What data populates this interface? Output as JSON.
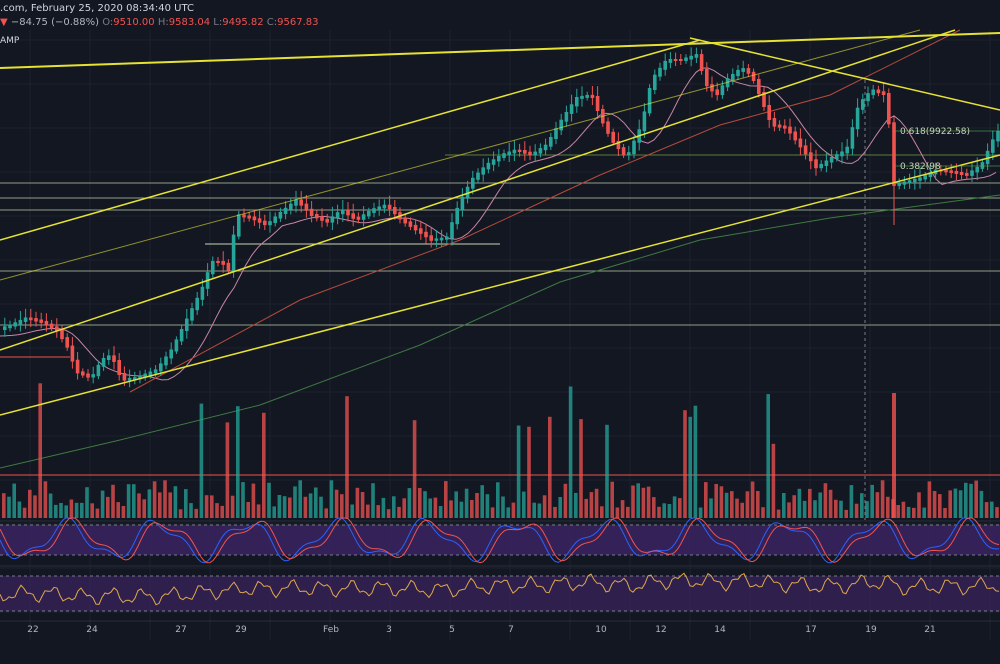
{
  "header": {
    "source_title": ".com, February 25, 2020 08:34:40 UTC",
    "change_arrow": "▼",
    "change": "−84.75 (−0.88%)",
    "open_label": "O:",
    "open_value": "9510.00",
    "high_label": "H:",
    "high_value": "9583.04",
    "low_label": "L:",
    "low_value": "9495.82",
    "close_label": "C:",
    "close_value": "9567.83",
    "indicator_label": "AMP"
  },
  "fib_labels": {
    "f618": "0.618(9922.58)",
    "f382": "0.382(98"
  },
  "x_axis": {
    "ticks": [
      "22",
      "24",
      "27",
      "29",
      "Feb",
      "3",
      "5",
      "7",
      "10",
      "12",
      "14",
      "17",
      "19",
      "21"
    ]
  },
  "colors": {
    "background": "#131722",
    "bull": "#26a69a",
    "bear": "#ef5350",
    "trendline": "#e5e234",
    "support": "#c8d6b0",
    "ma_fast": "#c986a6",
    "ma_mid": "#b74c3b",
    "ma_slow": "#3e7a42",
    "stoch_k": "#2962ff",
    "stoch_d": "#ef5350",
    "rsi": "#e0a84b",
    "osc_band": "#3b2360"
  }
}
